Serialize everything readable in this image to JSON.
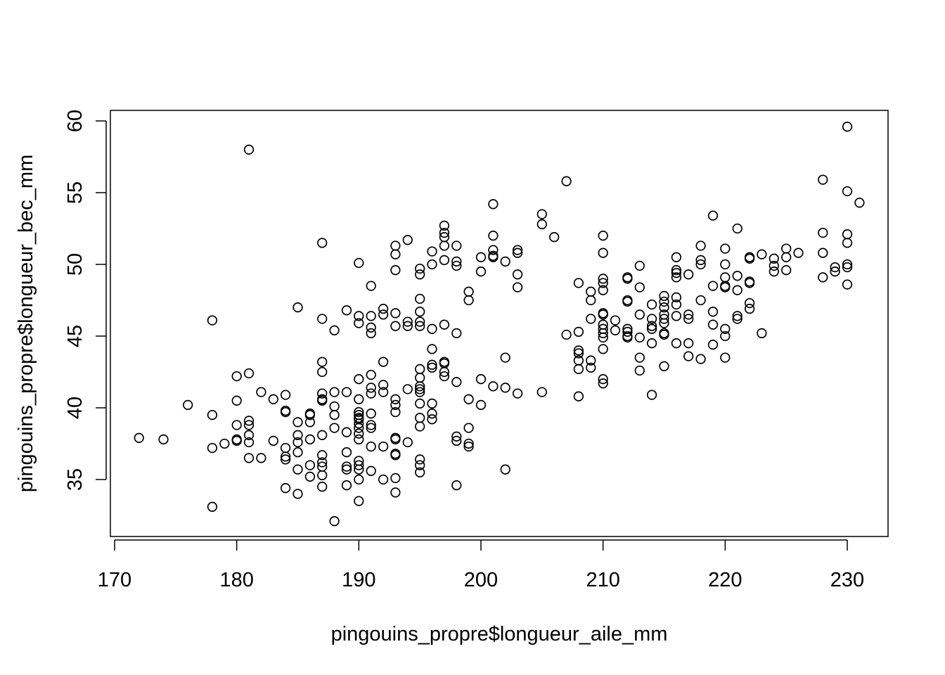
{
  "chart_data": {
    "type": "scatter",
    "xlabel": "pingouins_propre$longueur_aile_mm",
    "ylabel": "pingouins_propre$longueur_bec_mm",
    "xlim": [
      170,
      231
    ],
    "ylim": [
      32.1,
      59.6
    ],
    "x_ticks": [
      170,
      180,
      190,
      200,
      210,
      220,
      230
    ],
    "y_ticks": [
      35,
      40,
      45,
      50,
      55,
      60
    ],
    "x_tick_labels": [
      "170",
      "180",
      "190",
      "200",
      "210",
      "220",
      "230"
    ],
    "y_tick_labels": [
      "35",
      "40",
      "45",
      "50",
      "55",
      "60"
    ],
    "grid": false,
    "marker": "open-circle",
    "points": [
      [
        172,
        37.9
      ],
      [
        174,
        37.8
      ],
      [
        176,
        40.2
      ],
      [
        178,
        46.1
      ],
      [
        178,
        39.5
      ],
      [
        178,
        37.2
      ],
      [
        178,
        33.1
      ],
      [
        179,
        37.5
      ],
      [
        180,
        42.2
      ],
      [
        180,
        40.5
      ],
      [
        180,
        38.8
      ],
      [
        180,
        37.8
      ],
      [
        180,
        37.7
      ],
      [
        181,
        58.0
      ],
      [
        181,
        42.4
      ],
      [
        181,
        39.1
      ],
      [
        181,
        38.8
      ],
      [
        181,
        38.1
      ],
      [
        181,
        37.6
      ],
      [
        181,
        36.5
      ],
      [
        182,
        41.1
      ],
      [
        182,
        36.5
      ],
      [
        183,
        40.6
      ],
      [
        183,
        37.7
      ],
      [
        184,
        40.9
      ],
      [
        184,
        39.8
      ],
      [
        184,
        39.7
      ],
      [
        184,
        37.2
      ],
      [
        184,
        36.6
      ],
      [
        184,
        36.4
      ],
      [
        184,
        34.4
      ],
      [
        185,
        47.0
      ],
      [
        185,
        39.0
      ],
      [
        185,
        38.1
      ],
      [
        185,
        37.6
      ],
      [
        185,
        36.9
      ],
      [
        185,
        35.7
      ],
      [
        185,
        34.0
      ],
      [
        186,
        39.6
      ],
      [
        186,
        39.5
      ],
      [
        186,
        39.0
      ],
      [
        186,
        37.8
      ],
      [
        186,
        36.0
      ],
      [
        186,
        35.2
      ],
      [
        187,
        51.5
      ],
      [
        187,
        46.2
      ],
      [
        187,
        43.2
      ],
      [
        187,
        42.5
      ],
      [
        187,
        41.0
      ],
      [
        187,
        40.6
      ],
      [
        187,
        40.5
      ],
      [
        187,
        38.1
      ],
      [
        187,
        36.7
      ],
      [
        187,
        36.2
      ],
      [
        187,
        35.9
      ],
      [
        187,
        35.3
      ],
      [
        187,
        34.5
      ],
      [
        188,
        45.4
      ],
      [
        188,
        41.1
      ],
      [
        188,
        40.1
      ],
      [
        188,
        39.5
      ],
      [
        188,
        38.6
      ],
      [
        188,
        32.1
      ],
      [
        189,
        46.8
      ],
      [
        189,
        41.1
      ],
      [
        189,
        38.3
      ],
      [
        189,
        36.9
      ],
      [
        189,
        35.9
      ],
      [
        189,
        35.7
      ],
      [
        189,
        34.6
      ],
      [
        190,
        50.1
      ],
      [
        190,
        46.4
      ],
      [
        190,
        45.9
      ],
      [
        190,
        42.0
      ],
      [
        190,
        40.6
      ],
      [
        190,
        39.7
      ],
      [
        190,
        39.5
      ],
      [
        190,
        39.3
      ],
      [
        190,
        39.2
      ],
      [
        190,
        38.9
      ],
      [
        190,
        38.6
      ],
      [
        190,
        38.2
      ],
      [
        190,
        37.8
      ],
      [
        190,
        36.3
      ],
      [
        190,
        36.0
      ],
      [
        190,
        35.7
      ],
      [
        190,
        35.0
      ],
      [
        190,
        33.5
      ],
      [
        191,
        48.5
      ],
      [
        191,
        46.4
      ],
      [
        191,
        45.6
      ],
      [
        191,
        45.2
      ],
      [
        191,
        42.3
      ],
      [
        191,
        41.4
      ],
      [
        191,
        41.0
      ],
      [
        191,
        39.6
      ],
      [
        191,
        38.8
      ],
      [
        191,
        38.6
      ],
      [
        191,
        37.3
      ],
      [
        191,
        35.6
      ],
      [
        192,
        46.9
      ],
      [
        192,
        46.5
      ],
      [
        192,
        43.2
      ],
      [
        192,
        41.6
      ],
      [
        192,
        41.1
      ],
      [
        192,
        37.3
      ],
      [
        192,
        35.0
      ],
      [
        193,
        51.3
      ],
      [
        193,
        50.7
      ],
      [
        193,
        49.6
      ],
      [
        193,
        46.6
      ],
      [
        193,
        45.7
      ],
      [
        193,
        40.6
      ],
      [
        193,
        40.2
      ],
      [
        193,
        39.7
      ],
      [
        193,
        37.9
      ],
      [
        193,
        37.8
      ],
      [
        193,
        36.8
      ],
      [
        193,
        36.7
      ],
      [
        193,
        35.1
      ],
      [
        193,
        34.1
      ],
      [
        194,
        51.7
      ],
      [
        194,
        46.0
      ],
      [
        194,
        45.7
      ],
      [
        194,
        41.3
      ],
      [
        194,
        37.6
      ],
      [
        195,
        49.7
      ],
      [
        195,
        49.3
      ],
      [
        195,
        47.6
      ],
      [
        195,
        46.7
      ],
      [
        195,
        46.0
      ],
      [
        195,
        45.7
      ],
      [
        195,
        42.7
      ],
      [
        195,
        42.1
      ],
      [
        195,
        41.5
      ],
      [
        195,
        41.3
      ],
      [
        195,
        41.1
      ],
      [
        195,
        40.3
      ],
      [
        195,
        39.3
      ],
      [
        195,
        38.7
      ],
      [
        195,
        36.4
      ],
      [
        195,
        36.0
      ],
      [
        195,
        35.5
      ],
      [
        196,
        50.9
      ],
      [
        196,
        50.0
      ],
      [
        196,
        45.5
      ],
      [
        196,
        44.1
      ],
      [
        196,
        43.0
      ],
      [
        196,
        42.8
      ],
      [
        196,
        40.3
      ],
      [
        196,
        39.6
      ],
      [
        196,
        39.2
      ],
      [
        197,
        52.7
      ],
      [
        197,
        52.2
      ],
      [
        197,
        51.9
      ],
      [
        197,
        51.3
      ],
      [
        197,
        50.3
      ],
      [
        197,
        45.8
      ],
      [
        197,
        43.2
      ],
      [
        197,
        43.1
      ],
      [
        197,
        42.5
      ],
      [
        197,
        42.2
      ],
      [
        198,
        51.3
      ],
      [
        198,
        50.2
      ],
      [
        198,
        49.9
      ],
      [
        198,
        45.2
      ],
      [
        198,
        41.8
      ],
      [
        198,
        38.0
      ],
      [
        198,
        37.7
      ],
      [
        198,
        34.6
      ],
      [
        199,
        48.1
      ],
      [
        199,
        47.5
      ],
      [
        199,
        40.6
      ],
      [
        199,
        38.6
      ],
      [
        199,
        37.5
      ],
      [
        199,
        37.3
      ],
      [
        200,
        50.5
      ],
      [
        200,
        49.5
      ],
      [
        200,
        42.0
      ],
      [
        200,
        40.2
      ],
      [
        201,
        54.2
      ],
      [
        201,
        52.0
      ],
      [
        201,
        51.0
      ],
      [
        201,
        50.6
      ],
      [
        201,
        50.5
      ],
      [
        201,
        41.5
      ],
      [
        202,
        50.2
      ],
      [
        202,
        43.5
      ],
      [
        202,
        41.4
      ],
      [
        202,
        35.7
      ],
      [
        203,
        51.0
      ],
      [
        203,
        50.8
      ],
      [
        203,
        49.3
      ],
      [
        203,
        48.4
      ],
      [
        203,
        41.0
      ],
      [
        205,
        53.5
      ],
      [
        205,
        52.8
      ],
      [
        205,
        41.1
      ],
      [
        206,
        51.9
      ],
      [
        207,
        55.8
      ],
      [
        207,
        45.1
      ],
      [
        208,
        48.7
      ],
      [
        208,
        45.3
      ],
      [
        208,
        44.0
      ],
      [
        208,
        43.8
      ],
      [
        208,
        43.3
      ],
      [
        208,
        42.7
      ],
      [
        208,
        40.8
      ],
      [
        209,
        48.1
      ],
      [
        209,
        47.5
      ],
      [
        209,
        46.2
      ],
      [
        209,
        43.3
      ],
      [
        209,
        42.8
      ],
      [
        210,
        52.0
      ],
      [
        210,
        50.8
      ],
      [
        210,
        49.0
      ],
      [
        210,
        48.7
      ],
      [
        210,
        48.2
      ],
      [
        210,
        46.6
      ],
      [
        210,
        46.5
      ],
      [
        210,
        45.8
      ],
      [
        210,
        45.5
      ],
      [
        210,
        45.2
      ],
      [
        210,
        44.9
      ],
      [
        210,
        44.1
      ],
      [
        210,
        42.0
      ],
      [
        210,
        41.7
      ],
      [
        211,
        46.1
      ],
      [
        211,
        45.4
      ],
      [
        212,
        49.1
      ],
      [
        212,
        49.0
      ],
      [
        212,
        47.5
      ],
      [
        212,
        47.4
      ],
      [
        212,
        45.5
      ],
      [
        212,
        45.3
      ],
      [
        212,
        45.0
      ],
      [
        212,
        44.9
      ],
      [
        213,
        49.9
      ],
      [
        213,
        48.4
      ],
      [
        213,
        46.5
      ],
      [
        213,
        44.9
      ],
      [
        213,
        43.5
      ],
      [
        213,
        42.6
      ],
      [
        214,
        47.2
      ],
      [
        214,
        46.2
      ],
      [
        214,
        45.7
      ],
      [
        214,
        45.5
      ],
      [
        214,
        44.5
      ],
      [
        214,
        40.9
      ],
      [
        215,
        47.8
      ],
      [
        215,
        47.4
      ],
      [
        215,
        47.0
      ],
      [
        215,
        46.5
      ],
      [
        215,
        46.2
      ],
      [
        215,
        45.9
      ],
      [
        215,
        45.2
      ],
      [
        215,
        45.1
      ],
      [
        215,
        42.9
      ],
      [
        216,
        50.5
      ],
      [
        216,
        49.6
      ],
      [
        216,
        49.4
      ],
      [
        216,
        49.1
      ],
      [
        216,
        47.7
      ],
      [
        216,
        47.2
      ],
      [
        216,
        46.4
      ],
      [
        216,
        44.5
      ],
      [
        217,
        49.3
      ],
      [
        217,
        46.5
      ],
      [
        217,
        46.2
      ],
      [
        217,
        44.5
      ],
      [
        217,
        43.6
      ],
      [
        218,
        51.3
      ],
      [
        218,
        50.3
      ],
      [
        218,
        50.0
      ],
      [
        218,
        47.5
      ],
      [
        218,
        43.4
      ],
      [
        219,
        53.4
      ],
      [
        219,
        48.5
      ],
      [
        219,
        46.7
      ],
      [
        219,
        45.8
      ],
      [
        219,
        44.4
      ],
      [
        220,
        51.1
      ],
      [
        220,
        50.0
      ],
      [
        220,
        49.1
      ],
      [
        220,
        48.5
      ],
      [
        220,
        48.4
      ],
      [
        220,
        45.5
      ],
      [
        220,
        45.0
      ],
      [
        220,
        43.5
      ],
      [
        221,
        52.5
      ],
      [
        221,
        49.2
      ],
      [
        221,
        48.2
      ],
      [
        221,
        46.4
      ],
      [
        221,
        46.2
      ],
      [
        222,
        50.5
      ],
      [
        222,
        50.4
      ],
      [
        222,
        48.8
      ],
      [
        222,
        48.7
      ],
      [
        222,
        47.3
      ],
      [
        222,
        46.9
      ],
      [
        223,
        50.7
      ],
      [
        223,
        45.2
      ],
      [
        224,
        50.4
      ],
      [
        224,
        49.9
      ],
      [
        224,
        49.5
      ],
      [
        225,
        51.1
      ],
      [
        225,
        50.5
      ],
      [
        225,
        49.6
      ],
      [
        226,
        50.8
      ],
      [
        228,
        55.9
      ],
      [
        228,
        52.2
      ],
      [
        228,
        50.8
      ],
      [
        228,
        49.1
      ],
      [
        229,
        49.8
      ],
      [
        229,
        49.5
      ],
      [
        230,
        59.6
      ],
      [
        230,
        55.1
      ],
      [
        230,
        52.1
      ],
      [
        230,
        51.5
      ],
      [
        230,
        50.0
      ],
      [
        230,
        49.8
      ],
      [
        230,
        48.6
      ],
      [
        231,
        54.3
      ]
    ]
  }
}
